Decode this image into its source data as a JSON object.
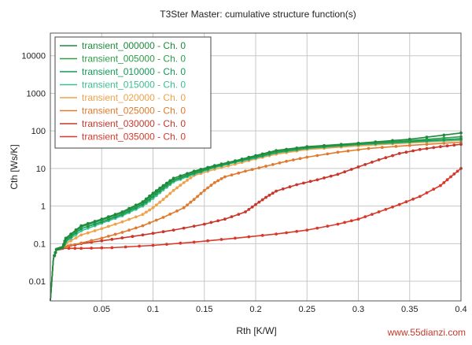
{
  "chart_data": {
    "type": "line",
    "title": "T3Ster Master: cumulative structure function(s)",
    "xlabel": "Rth  [K/W]",
    "ylabel": "Cth  [Ws/K]",
    "x_scale": "linear",
    "y_scale": "log",
    "xlim": [
      0,
      0.4
    ],
    "ylim": [
      0.003,
      40000
    ],
    "x_ticks": [
      "0.05",
      "0.1",
      "0.15",
      "0.2",
      "0.25",
      "0.3",
      "0.35",
      "0.4"
    ],
    "y_ticks": [
      "0.01",
      "0.1",
      "1",
      "10",
      "100",
      "1000",
      "10000"
    ],
    "grid": true,
    "legend_position": "top-left",
    "series": [
      {
        "name": "transient_000000 - Ch. 0",
        "color": "#1e8a3c",
        "points": [
          [
            0,
            0.003
          ],
          [
            0.003,
            0.04
          ],
          [
            0.006,
            0.07
          ],
          [
            0.012,
            0.08
          ],
          [
            0.015,
            0.14
          ],
          [
            0.03,
            0.3
          ],
          [
            0.05,
            0.45
          ],
          [
            0.07,
            0.7
          ],
          [
            0.09,
            1.3
          ],
          [
            0.1,
            2.2
          ],
          [
            0.11,
            3.5
          ],
          [
            0.12,
            5.5
          ],
          [
            0.14,
            8.5
          ],
          [
            0.16,
            12
          ],
          [
            0.18,
            16
          ],
          [
            0.2,
            22
          ],
          [
            0.22,
            30
          ],
          [
            0.25,
            38
          ],
          [
            0.3,
            47
          ],
          [
            0.35,
            60
          ],
          [
            0.4,
            88
          ]
        ]
      },
      {
        "name": "transient_005000 - Ch. 0",
        "color": "#2e9e48",
        "points": [
          [
            0,
            0.003
          ],
          [
            0.003,
            0.04
          ],
          [
            0.006,
            0.07
          ],
          [
            0.012,
            0.08
          ],
          [
            0.015,
            0.13
          ],
          [
            0.03,
            0.28
          ],
          [
            0.05,
            0.42
          ],
          [
            0.07,
            0.65
          ],
          [
            0.09,
            1.2
          ],
          [
            0.1,
            2
          ],
          [
            0.11,
            3.2
          ],
          [
            0.12,
            5
          ],
          [
            0.14,
            8
          ],
          [
            0.16,
            11.5
          ],
          [
            0.18,
            15.5
          ],
          [
            0.2,
            21
          ],
          [
            0.22,
            28
          ],
          [
            0.25,
            36
          ],
          [
            0.3,
            45
          ],
          [
            0.35,
            55
          ],
          [
            0.4,
            70
          ]
        ]
      },
      {
        "name": "transient_010000 - Ch. 0",
        "color": "#119955",
        "points": [
          [
            0,
            0.003
          ],
          [
            0.003,
            0.04
          ],
          [
            0.006,
            0.07
          ],
          [
            0.012,
            0.08
          ],
          [
            0.015,
            0.12
          ],
          [
            0.03,
            0.25
          ],
          [
            0.05,
            0.38
          ],
          [
            0.07,
            0.6
          ],
          [
            0.09,
            1.1
          ],
          [
            0.1,
            1.8
          ],
          [
            0.11,
            3
          ],
          [
            0.12,
            4.8
          ],
          [
            0.14,
            7.5
          ],
          [
            0.16,
            11
          ],
          [
            0.18,
            15
          ],
          [
            0.2,
            20
          ],
          [
            0.22,
            27
          ],
          [
            0.25,
            35
          ],
          [
            0.3,
            44
          ],
          [
            0.35,
            52
          ],
          [
            0.4,
            62
          ]
        ]
      },
      {
        "name": "transient_015000 - Ch. 0",
        "color": "#3bbf8e",
        "points": [
          [
            0,
            0.003
          ],
          [
            0.003,
            0.04
          ],
          [
            0.006,
            0.07
          ],
          [
            0.012,
            0.08
          ],
          [
            0.015,
            0.11
          ],
          [
            0.03,
            0.22
          ],
          [
            0.05,
            0.35
          ],
          [
            0.07,
            0.55
          ],
          [
            0.09,
            1
          ],
          [
            0.1,
            1.6
          ],
          [
            0.11,
            2.7
          ],
          [
            0.12,
            4.4
          ],
          [
            0.14,
            7
          ],
          [
            0.16,
            10.5
          ],
          [
            0.18,
            14.5
          ],
          [
            0.2,
            19
          ],
          [
            0.22,
            26
          ],
          [
            0.25,
            34
          ],
          [
            0.3,
            43
          ],
          [
            0.35,
            50
          ],
          [
            0.4,
            58
          ]
        ]
      },
      {
        "name": "transient_020000 - Ch. 0",
        "color": "#f0a24a",
        "points": [
          [
            0,
            0.003
          ],
          [
            0.003,
            0.04
          ],
          [
            0.006,
            0.07
          ],
          [
            0.012,
            0.08
          ],
          [
            0.015,
            0.1
          ],
          [
            0.03,
            0.17
          ],
          [
            0.05,
            0.25
          ],
          [
            0.07,
            0.38
          ],
          [
            0.09,
            0.6
          ],
          [
            0.1,
            0.9
          ],
          [
            0.11,
            1.5
          ],
          [
            0.12,
            2.6
          ],
          [
            0.13,
            4.2
          ],
          [
            0.14,
            6.5
          ],
          [
            0.16,
            9.5
          ],
          [
            0.18,
            13
          ],
          [
            0.2,
            18
          ],
          [
            0.22,
            24
          ],
          [
            0.25,
            32
          ],
          [
            0.3,
            40
          ],
          [
            0.35,
            48
          ],
          [
            0.4,
            56
          ]
        ]
      },
      {
        "name": "transient_025000 - Ch. 0",
        "color": "#e07a2e",
        "points": [
          [
            0,
            0.003
          ],
          [
            0.003,
            0.04
          ],
          [
            0.006,
            0.07
          ],
          [
            0.012,
            0.08
          ],
          [
            0.02,
            0.09
          ],
          [
            0.05,
            0.14
          ],
          [
            0.07,
            0.2
          ],
          [
            0.09,
            0.3
          ],
          [
            0.11,
            0.5
          ],
          [
            0.13,
            0.9
          ],
          [
            0.14,
            1.5
          ],
          [
            0.15,
            2.6
          ],
          [
            0.16,
            4.2
          ],
          [
            0.17,
            6
          ],
          [
            0.19,
            8.5
          ],
          [
            0.21,
            11.5
          ],
          [
            0.23,
            15.5
          ],
          [
            0.25,
            20
          ],
          [
            0.28,
            27
          ],
          [
            0.31,
            34
          ],
          [
            0.35,
            41
          ],
          [
            0.4,
            50
          ]
        ]
      },
      {
        "name": "transient_030000 - Ch. 0",
        "color": "#c9362a",
        "points": [
          [
            0,
            0.003
          ],
          [
            0.003,
            0.04
          ],
          [
            0.006,
            0.07
          ],
          [
            0.012,
            0.08
          ],
          [
            0.03,
            0.1
          ],
          [
            0.06,
            0.13
          ],
          [
            0.09,
            0.17
          ],
          [
            0.12,
            0.23
          ],
          [
            0.15,
            0.33
          ],
          [
            0.17,
            0.45
          ],
          [
            0.19,
            0.7
          ],
          [
            0.2,
            1.1
          ],
          [
            0.21,
            1.7
          ],
          [
            0.22,
            2.5
          ],
          [
            0.24,
            3.7
          ],
          [
            0.26,
            5
          ],
          [
            0.28,
            7
          ],
          [
            0.3,
            11
          ],
          [
            0.32,
            17
          ],
          [
            0.34,
            25
          ],
          [
            0.36,
            32
          ],
          [
            0.38,
            38
          ],
          [
            0.4,
            44
          ]
        ]
      },
      {
        "name": "transient_035000 - Ch. 0",
        "color": "#d9382a",
        "points": [
          [
            0,
            0.003
          ],
          [
            0.003,
            0.04
          ],
          [
            0.006,
            0.07
          ],
          [
            0.012,
            0.075
          ],
          [
            0.03,
            0.075
          ],
          [
            0.06,
            0.078
          ],
          [
            0.1,
            0.09
          ],
          [
            0.14,
            0.11
          ],
          [
            0.18,
            0.14
          ],
          [
            0.22,
            0.18
          ],
          [
            0.25,
            0.23
          ],
          [
            0.28,
            0.33
          ],
          [
            0.3,
            0.45
          ],
          [
            0.32,
            0.7
          ],
          [
            0.34,
            1.1
          ],
          [
            0.36,
            1.8
          ],
          [
            0.38,
            3.5
          ],
          [
            0.39,
            6
          ],
          [
            0.4,
            10
          ]
        ]
      }
    ]
  },
  "watermark": "www.55dianzi.com"
}
